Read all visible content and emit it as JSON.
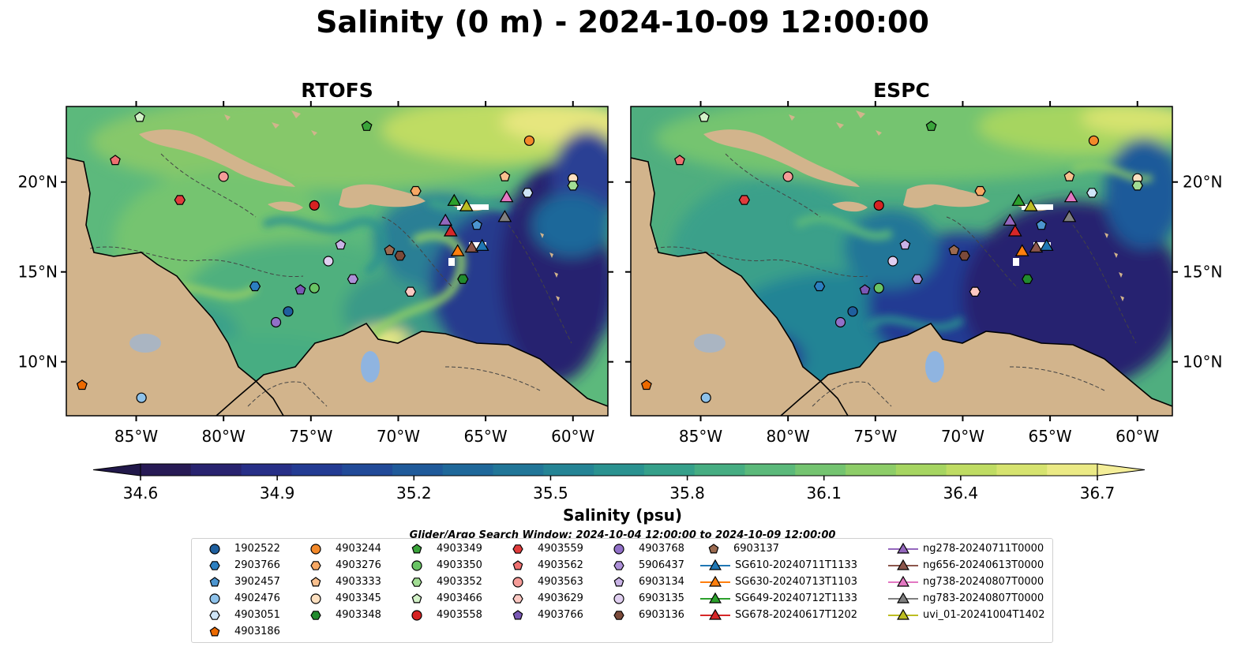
{
  "title": "Salinity (0 m) - 2024-10-09 12:00:00",
  "panels": [
    {
      "title": "RTOFS"
    },
    {
      "title": "ESPC"
    }
  ],
  "axes": {
    "x_ticks": [
      "85°W",
      "80°W",
      "75°W",
      "70°W",
      "65°W",
      "60°W"
    ],
    "x_tick_values": [
      -85,
      -80,
      -75,
      -70,
      -65,
      -60
    ],
    "y_ticks": [
      "20°N",
      "15°N",
      "10°N"
    ],
    "y_tick_values": [
      20,
      15,
      10
    ],
    "lon_range": [
      -89,
      -58
    ],
    "lat_range": [
      7,
      24.2
    ]
  },
  "colorbar": {
    "label": "Salinity (psu)",
    "ticks": [
      "34.6",
      "34.9",
      "35.2",
      "35.5",
      "35.8",
      "36.1",
      "36.4",
      "36.7"
    ],
    "tick_values": [
      34.6,
      34.9,
      35.2,
      35.5,
      35.8,
      36.1,
      36.4,
      36.7
    ],
    "colors": [
      "#271a55",
      "#28236f",
      "#272f87",
      "#233b93",
      "#214a98",
      "#1f5a9a",
      "#1f689a",
      "#217698",
      "#248495",
      "#2a9290",
      "#35a08a",
      "#46ad82",
      "#5bb97a",
      "#74c470",
      "#8dcd68",
      "#a6d561",
      "#bfdc63",
      "#d6e36f",
      "#ebea85"
    ],
    "extend": "both"
  },
  "search_window": "Glider/Argo Search Window: 2024-10-04 12:00:00 to 2024-10-09 12:00:00",
  "legend": {
    "columns": [
      [
        {
          "label": "1902522",
          "marker": "circle",
          "color": "#1f5f9e"
        },
        {
          "label": "2903766",
          "marker": "hexagon",
          "color": "#2c7fc0"
        },
        {
          "label": "3902457",
          "marker": "pentagon",
          "color": "#4c95cf"
        },
        {
          "label": "4902476",
          "marker": "circle",
          "color": "#8ec2ea"
        },
        {
          "label": "4903051",
          "marker": "hexagon",
          "color": "#cfe5f7"
        },
        {
          "label": "4903186",
          "marker": "pentagon",
          "color": "#ec6a00"
        }
      ],
      [
        {
          "label": "4903244",
          "marker": "circle",
          "color": "#f3892a"
        },
        {
          "label": "4903276",
          "marker": "hexagon",
          "color": "#f7a864"
        },
        {
          "label": "4903333",
          "marker": "pentagon",
          "color": "#f9c08e"
        },
        {
          "label": "4903345",
          "marker": "circle",
          "color": "#fde0c0"
        },
        {
          "label": "4903348",
          "marker": "hexagon",
          "color": "#228b2e"
        }
      ],
      [
        {
          "label": "4903349",
          "marker": "pentagon",
          "color": "#3aa43a"
        },
        {
          "label": "4903350",
          "marker": "circle",
          "color": "#69c464"
        },
        {
          "label": "4903352",
          "marker": "hexagon",
          "color": "#a2dd94"
        },
        {
          "label": "4903466",
          "marker": "pentagon",
          "color": "#d3f2c8"
        },
        {
          "label": "4903558",
          "marker": "circle",
          "color": "#d62222"
        }
      ],
      [
        {
          "label": "4903559",
          "marker": "hexagon",
          "color": "#e03c3c"
        },
        {
          "label": "4903562",
          "marker": "pentagon",
          "color": "#ee7070"
        },
        {
          "label": "4903563",
          "marker": "circle",
          "color": "#f59c98"
        },
        {
          "label": "4903629",
          "marker": "hexagon",
          "color": "#fbc8c2"
        },
        {
          "label": "4903766",
          "marker": "pentagon",
          "color": "#7a58b5"
        }
      ],
      [
        {
          "label": "4903768",
          "marker": "circle",
          "color": "#9170c8"
        },
        {
          "label": "5906437",
          "marker": "hexagon",
          "color": "#ad90d8"
        },
        {
          "label": "6903134",
          "marker": "pentagon",
          "color": "#c9b3e6"
        },
        {
          "label": "6903135",
          "marker": "circle",
          "color": "#e0cff0"
        },
        {
          "label": "6903136",
          "marker": "hexagon",
          "color": "#7b4a3a"
        }
      ],
      [
        {
          "label": "6903137",
          "marker": "pentagon",
          "color": "#9b6a50"
        },
        {
          "label": "SG610-20240711T1133",
          "marker": "triangle-line",
          "color": "#1f77b4"
        },
        {
          "label": "SG630-20240713T1103",
          "marker": "triangle-line",
          "color": "#ff7f0e"
        },
        {
          "label": "SG649-20240712T1133",
          "marker": "triangle-line",
          "color": "#2ca02c"
        },
        {
          "label": "SG678-20240617T1202",
          "marker": "triangle-line",
          "color": "#d62728"
        }
      ],
      [
        {
          "label": "ng278-20240711T0000",
          "marker": "triangle-line",
          "color": "#9467bd"
        },
        {
          "label": "ng656-20240613T0000",
          "marker": "triangle-line",
          "color": "#8c564b"
        },
        {
          "label": "ng738-20240807T0000",
          "marker": "triangle-line",
          "color": "#e377c2"
        },
        {
          "label": "ng783-20240807T0000",
          "marker": "triangle-line",
          "color": "#7f7f7f"
        },
        {
          "label": "uvi_01-20241004T1402",
          "marker": "triangle-line",
          "color": "#bcbd22"
        }
      ]
    ]
  },
  "observations": [
    {
      "id": "4903466",
      "marker": "pentagon",
      "color": "#d3f2c8",
      "lon": -84.8,
      "lat": 23.6
    },
    {
      "id": "4903349",
      "marker": "pentagon",
      "color": "#3aa43a",
      "lon": -71.8,
      "lat": 23.1
    },
    {
      "id": "4903562",
      "marker": "pentagon",
      "color": "#ee7070",
      "lon": -86.2,
      "lat": 21.2
    },
    {
      "id": "4903563",
      "marker": "circle",
      "color": "#f59c98",
      "lon": -80.0,
      "lat": 20.3
    },
    {
      "id": "4903559",
      "marker": "hexagon",
      "color": "#e03c3c",
      "lon": -82.5,
      "lat": 19.0
    },
    {
      "id": "4903244",
      "marker": "circle",
      "color": "#f3892a",
      "lon": -62.5,
      "lat": 22.3
    },
    {
      "id": "4903333",
      "marker": "pentagon",
      "color": "#f9c08e",
      "lon": -63.9,
      "lat": 20.3
    },
    {
      "id": "4903345",
      "marker": "circle",
      "color": "#fde0c0",
      "lon": -60.0,
      "lat": 20.2
    },
    {
      "id": "4903352",
      "marker": "hexagon",
      "color": "#a2dd94",
      "lon": -60.0,
      "lat": 19.8
    },
    {
      "id": "4903051",
      "marker": "hexagon",
      "color": "#cfe5f7",
      "lon": -62.6,
      "lat": 19.4
    },
    {
      "id": "4903276",
      "marker": "hexagon",
      "color": "#f7a864",
      "lon": -69.0,
      "lat": 19.5
    },
    {
      "id": "4903558",
      "marker": "circle",
      "color": "#d62222",
      "lon": -74.8,
      "lat": 18.7
    },
    {
      "id": "6903134",
      "marker": "pentagon",
      "color": "#c9b3e6",
      "lon": -73.3,
      "lat": 16.5
    },
    {
      "id": "6903135",
      "marker": "circle",
      "color": "#e0cff0",
      "lon": -74.0,
      "lat": 15.6
    },
    {
      "id": "6903137",
      "marker": "pentagon",
      "color": "#9b6a50",
      "lon": -70.5,
      "lat": 16.2
    },
    {
      "id": "6903136",
      "marker": "hexagon",
      "color": "#7b4a3a",
      "lon": -69.9,
      "lat": 15.9
    },
    {
      "id": "2903766",
      "marker": "hexagon",
      "color": "#2c7fc0",
      "lon": -78.2,
      "lat": 14.2
    },
    {
      "id": "4903766",
      "marker": "pentagon",
      "color": "#7a58b5",
      "lon": -75.6,
      "lat": 14.0
    },
    {
      "id": "4903350",
      "marker": "circle",
      "color": "#69c464",
      "lon": -74.8,
      "lat": 14.1
    },
    {
      "id": "5906437",
      "marker": "hexagon",
      "color": "#ad90d8",
      "lon": -72.6,
      "lat": 14.6
    },
    {
      "id": "4903629",
      "marker": "hexagon",
      "color": "#fbc8c2",
      "lon": -69.3,
      "lat": 13.9
    },
    {
      "id": "1902522",
      "marker": "circle",
      "color": "#1f5f9e",
      "lon": -76.3,
      "lat": 12.8
    },
    {
      "id": "4903768",
      "marker": "circle",
      "color": "#9170c8",
      "lon": -77.0,
      "lat": 12.2
    },
    {
      "id": "4903348",
      "marker": "hexagon",
      "color": "#228b2e",
      "lon": -66.3,
      "lat": 14.6
    },
    {
      "id": "4903186",
      "marker": "pentagon",
      "color": "#ec6a00",
      "lon": -88.1,
      "lat": 8.7
    },
    {
      "id": "4902476",
      "marker": "circle",
      "color": "#8ec2ea",
      "lon": -84.7,
      "lat": 8.0
    },
    {
      "id": "3902457",
      "marker": "pentagon",
      "color": "#4c95cf",
      "lon": -65.5,
      "lat": 17.6
    }
  ],
  "gliders": [
    {
      "id": "SG649-20240712T1133",
      "color": "#2ca02c",
      "lon": -66.8,
      "lat": 18.9
    },
    {
      "id": "uvi_01-20241004T1402",
      "color": "#bcbd22",
      "lon": -66.1,
      "lat": 18.6
    },
    {
      "id": "ng738-20240807T0000",
      "color": "#e377c2",
      "lon": -63.8,
      "lat": 19.1
    },
    {
      "id": "ng278-20240711T0000",
      "color": "#9467bd",
      "lon": -67.3,
      "lat": 17.8
    },
    {
      "id": "ng783-20240807T0000",
      "color": "#7f7f7f",
      "lon": -63.9,
      "lat": 18.0
    },
    {
      "id": "SG678-20240617T1202",
      "color": "#d62728",
      "lon": -67.0,
      "lat": 17.2
    },
    {
      "id": "SG630-20240713T1103",
      "color": "#ff7f0e",
      "lon": -66.6,
      "lat": 16.1
    },
    {
      "id": "ng656-20240613T0000",
      "color": "#8c564b",
      "lon": -65.8,
      "lat": 16.3
    },
    {
      "id": "SG610-20240711T1133",
      "color": "#1f77b4",
      "lon": -65.2,
      "lat": 16.4
    }
  ]
}
